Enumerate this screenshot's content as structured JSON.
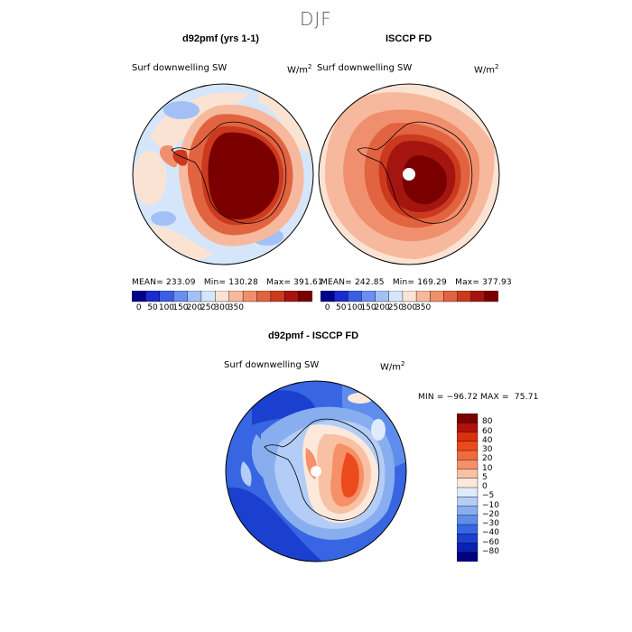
{
  "season_title": "DJF",
  "colors": {
    "ocean_neutral": "#cfe2f7",
    "warm_strong": "#8b0000",
    "cool_strong": "#00008b",
    "coastline": "#000000"
  },
  "panels": {
    "model": {
      "title": "d92pmf (yrs 1-1)",
      "field": "Surf downwelling SW",
      "units": "W/m",
      "units_sup": "2",
      "mean_label": "MEAN=",
      "mean": "233.09",
      "min_label": "Min=",
      "min": "130.28",
      "max_label": "Max=",
      "max": "391.61"
    },
    "obs": {
      "title": "ISCCP FD",
      "field": "Surf downwelling SW",
      "units": "W/m",
      "units_sup": "2",
      "mean_label": "MEAN=",
      "mean": "242.85",
      "min_label": "Min=",
      "min": "169.29",
      "max_label": "Max=",
      "max": "377.93"
    },
    "diff": {
      "title": "d92pmf - ISCCP FD",
      "field": "Surf downwelling SW",
      "units": "W/m",
      "units_sup": "2",
      "min_label": "MIN =",
      "min": "−96.72",
      "max_label": "MAX =",
      "max": "75.71"
    }
  },
  "abs_colorbar": {
    "colors": [
      "#00008b",
      "#1a2bd0",
      "#3a5ee6",
      "#6a8ff0",
      "#a3c0f6",
      "#d6e6fa",
      "#fbe3d3",
      "#f7b99d",
      "#f08f6d",
      "#e2633f",
      "#cb3a1e",
      "#a51510",
      "#7a0000"
    ],
    "ticks": [
      "0",
      "50",
      "100",
      "150",
      "200",
      "250",
      "300",
      "350"
    ]
  },
  "diff_colorbar": {
    "colors": [
      "#7a0000",
      "#b01208",
      "#d9300f",
      "#ea4a1c",
      "#f06a3c",
      "#f59068",
      "#f9c1a3",
      "#fde8dc",
      "#dfeafb",
      "#b4cdf6",
      "#88aef0",
      "#5e8deb",
      "#3866e2",
      "#1b40cf",
      "#0a22b0",
      "#000080"
    ],
    "ticks": [
      "80",
      "60",
      "40",
      "30",
      "20",
      "10",
      "5",
      "0",
      "−5",
      "−10",
      "−20",
      "−30",
      "−40",
      "−60",
      "−80"
    ]
  }
}
